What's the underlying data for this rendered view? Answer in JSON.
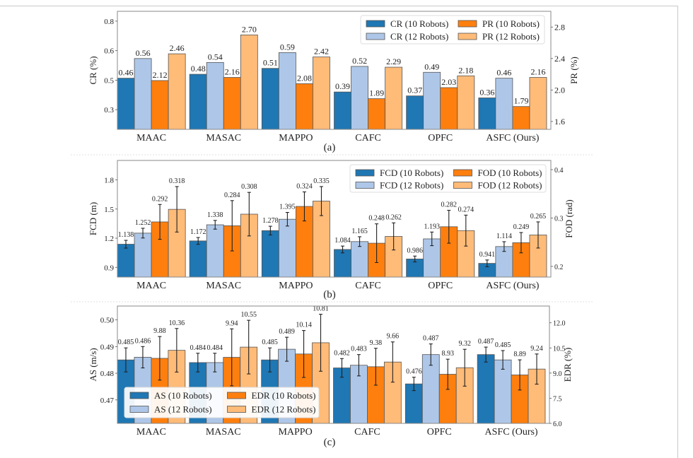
{
  "figure": {
    "colors": {
      "series1": "#1f77b4",
      "series2": "#aec7e8",
      "series3": "#ff7f0e",
      "series4": "#ffbb78",
      "edge": "#555555",
      "errorbar": "#222222"
    }
  },
  "chart_data": [
    {
      "id": "a",
      "type": "bar",
      "caption": "(a)",
      "categories": [
        "MAAC",
        "MASAC",
        "MAPPO",
        "CAFC",
        "OPFC",
        "ASFC (Ours)"
      ],
      "ylabel": "CR (%)",
      "y2label": "PR (%)",
      "ylim": [
        0.2,
        0.8
      ],
      "yticks": [
        0.3,
        0.45,
        0.6,
        0.75
      ],
      "ytick_labels": [
        "0.3",
        "0.5",
        "0.6",
        "0.8"
      ],
      "y2lim": [
        1.5,
        3.0
      ],
      "y2ticks": [
        1.6,
        2.0,
        2.4,
        2.8
      ],
      "y2tick_labels": [
        "1.6",
        "2.0",
        "2.4",
        "2.8"
      ],
      "legend_position": "top-right",
      "grid": false,
      "error_bars": false,
      "series": [
        {
          "name": "CR (10 Robots)",
          "axis": "left",
          "values": [
            0.46,
            0.48,
            0.51,
            0.39,
            0.37,
            0.36
          ],
          "labels": [
            "0.46",
            "0.48",
            "0.51",
            "0.39",
            "0.37",
            "0.36"
          ]
        },
        {
          "name": "CR (12 Robots)",
          "axis": "left",
          "values": [
            0.56,
            0.54,
            0.59,
            0.52,
            0.49,
            0.46
          ],
          "labels": [
            "0.56",
            "0.54",
            "0.59",
            "0.52",
            "0.49",
            "0.46"
          ]
        },
        {
          "name": "PR (10 Robots)",
          "axis": "right",
          "values": [
            2.12,
            2.16,
            2.08,
            1.89,
            2.03,
            1.79
          ],
          "labels": [
            "2.12",
            "2.16",
            "2.08",
            "1.89",
            "2.03",
            "1.79"
          ]
        },
        {
          "name": "PR (12 Robots)",
          "axis": "right",
          "values": [
            2.46,
            2.7,
            2.42,
            2.29,
            2.18,
            2.16
          ],
          "labels": [
            "2.46",
            "2.70",
            "2.42",
            "2.29",
            "2.18",
            "2.16"
          ]
        }
      ]
    },
    {
      "id": "b",
      "type": "bar",
      "caption": "(b)",
      "categories": [
        "MAAC",
        "MASAC",
        "MAPPO",
        "CAFC",
        "OPFC",
        "ASFC (Ours)"
      ],
      "ylabel": "FCD (m)",
      "y2label": "FOD (rad)",
      "ylim": [
        0.8,
        2.0
      ],
      "yticks": [
        0.9,
        1.2,
        1.5,
        1.8
      ],
      "ytick_labels": [
        "0.9",
        "1.2",
        "1.5",
        "1.8"
      ],
      "y2lim": [
        0.178,
        0.419
      ],
      "y2ticks": [
        0.2,
        0.3,
        0.4
      ],
      "y2tick_labels": [
        "0.2",
        "0.3",
        "0.4"
      ],
      "legend_position": "top-right",
      "grid": false,
      "error_bars": true,
      "series": [
        {
          "name": "FCD (10 Robots)",
          "axis": "left",
          "values": [
            1.138,
            1.172,
            1.278,
            1.084,
            0.986,
            0.941
          ],
          "labels": [
            "1.138",
            "1.172",
            "1.278",
            "1.084",
            "0.986",
            "0.941"
          ],
          "errors": [
            0.04,
            0.035,
            0.045,
            0.035,
            0.03,
            0.035
          ]
        },
        {
          "name": "FCD (12 Robots)",
          "axis": "left",
          "values": [
            1.252,
            1.338,
            1.395,
            1.165,
            1.193,
            1.114
          ],
          "labels": [
            "1.252",
            "1.338",
            "1.395",
            "1.165",
            "1.193",
            "1.114"
          ],
          "errors": [
            0.05,
            0.045,
            0.07,
            0.05,
            0.07,
            0.05
          ]
        },
        {
          "name": "FOD (10 Robots)",
          "axis": "right",
          "values": [
            0.292,
            0.284,
            0.324,
            0.248,
            0.282,
            0.249
          ],
          "labels": [
            "0.292",
            "0.284",
            "0.324",
            "0.248",
            "0.282",
            "0.249"
          ],
          "errors": [
            0.036,
            0.052,
            0.03,
            0.04,
            0.034,
            0.021
          ]
        },
        {
          "name": "FOD (12 Robots)",
          "axis": "right",
          "values": [
            0.318,
            0.308,
            0.335,
            0.262,
            0.274,
            0.265
          ],
          "labels": [
            "0.318",
            "0.308",
            "0.335",
            "0.262",
            "0.274",
            "0.265"
          ],
          "errors": [
            0.047,
            0.045,
            0.03,
            0.028,
            0.032,
            0.027
          ]
        }
      ]
    },
    {
      "id": "c",
      "type": "bar",
      "caption": "(c)",
      "categories": [
        "MAAC",
        "MASAC",
        "MAPPO",
        "CAFC",
        "OPFC",
        "ASFC (Ours)"
      ],
      "ylabel": "AS (m/s)",
      "y2label": "EDR (%)",
      "ylim": [
        0.4612,
        0.5052
      ],
      "yticks": [
        0.47,
        0.48,
        0.49,
        0.5
      ],
      "ytick_labels": [
        "0.47",
        "0.48",
        "0.49",
        "0.50"
      ],
      "y2lim": [
        6.0,
        13.0
      ],
      "y2ticks": [
        6.0,
        7.5,
        9.0,
        10.5,
        12.0
      ],
      "y2tick_labels": [
        "6.0",
        "7.5",
        "9.0",
        "10.5",
        "12.0"
      ],
      "legend_position": "lower-left",
      "grid": false,
      "error_bars": true,
      "series": [
        {
          "name": "AS (10 Robots)",
          "axis": "left",
          "values": [
            0.485,
            0.484,
            0.485,
            0.482,
            0.476,
            0.487
          ],
          "labels": [
            "0.485",
            "0.484",
            "0.485",
            "0.482",
            "0.476",
            "0.487"
          ],
          "errors": [
            0.0045,
            0.0035,
            0.0045,
            0.0035,
            0.0025,
            0.0028
          ]
        },
        {
          "name": "AS (12 Robots)",
          "axis": "left",
          "values": [
            0.486,
            0.484,
            0.489,
            0.483,
            0.487,
            0.485
          ],
          "labels": [
            "0.486",
            "0.484",
            "0.489",
            "0.483",
            "0.487",
            "0.485"
          ],
          "errors": [
            0.004,
            0.0035,
            0.0045,
            0.004,
            0.004,
            0.0035
          ]
        },
        {
          "name": "EDR (10 Robots)",
          "axis": "right",
          "values": [
            9.88,
            9.94,
            10.14,
            9.38,
            8.93,
            8.89
          ],
          "labels": [
            "9.88",
            "9.94",
            "10.14",
            "9.38",
            "8.93",
            "8.89"
          ],
          "errors": [
            1.3,
            1.7,
            1.4,
            1.1,
            0.9,
            0.9
          ]
        },
        {
          "name": "EDR (12 Robots)",
          "axis": "right",
          "values": [
            10.36,
            10.55,
            10.81,
            9.66,
            9.32,
            9.24
          ],
          "labels": [
            "10.36",
            "10.55",
            "10.81",
            "9.66",
            "9.32",
            "9.24"
          ],
          "errors": [
            1.3,
            1.6,
            1.7,
            1.2,
            1.1,
            0.9
          ]
        }
      ]
    }
  ]
}
